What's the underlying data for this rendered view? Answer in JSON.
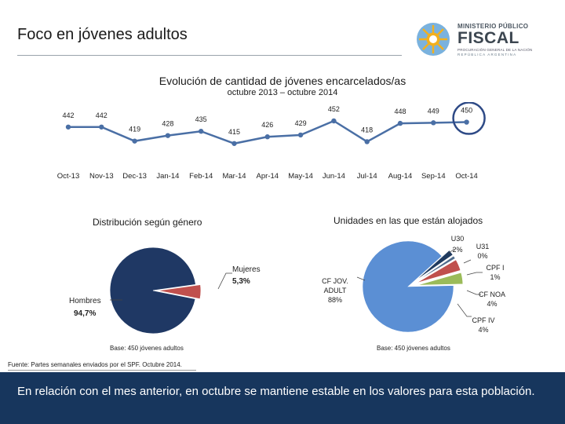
{
  "header": {
    "title": "Foco en jóvenes adultos",
    "logo": {
      "line1": "MINISTERIO PÚBLICO",
      "line2": "FISCAL",
      "line3": "PROCURACIÓN GENERAL DE LA NACIÓN",
      "line4": "REPÚBLICA ARGENTINA",
      "icon": "sun-emblem-icon"
    }
  },
  "colors": {
    "line": "#4a6fa5",
    "pie_dark": "#1f3864",
    "pie_red": "#c0504d",
    "pie_blue": "#5b8fd4",
    "pie_green": "#9bbb59",
    "pie_navy": "#1f3a5f",
    "pie_slate": "#4f6b8c",
    "highlight_circle": "#2e4a86",
    "footer_bg": "#17365d"
  },
  "chart_data": [
    {
      "type": "line",
      "title": "Evolución de cantidad de jóvenes encarcelados/as",
      "subtitle": "octubre 2013 – octubre 2014",
      "categories": [
        "Oct-13",
        "Nov-13",
        "Dec-13",
        "Jan-14",
        "Feb-14",
        "Mar-14",
        "Apr-14",
        "May-14",
        "Jun-14",
        "Jul-14",
        "Aug-14",
        "Sep-14",
        "Oct-14"
      ],
      "values": [
        442,
        442,
        419,
        428,
        435,
        415,
        426,
        429,
        452,
        418,
        448,
        449,
        450
      ],
      "ylim": [
        380,
        470
      ],
      "grid": false,
      "highlight": "Oct-14"
    },
    {
      "type": "pie",
      "title": "Distribución según género",
      "labels": [
        "Hombres",
        "Mujeres"
      ],
      "values": [
        94.7,
        5.3
      ],
      "value_labels": [
        "94,7%",
        "5,3%"
      ],
      "note": "Base: 450 jóvenes adultos"
    },
    {
      "type": "pie",
      "title": "Unidades en las que están alojados",
      "labels": [
        "CF JOV. ADULT",
        "U30",
        "U31",
        "CPF I",
        "CF NOA",
        "CPF IV"
      ],
      "values": [
        88,
        2,
        0,
        1,
        4,
        4
      ],
      "value_labels": [
        "88%",
        "2%",
        "0%",
        "1%",
        "4%",
        "4%"
      ],
      "note": "Base: 450 jóvenes adultos"
    }
  ],
  "source": "Fuente: Partes semanales enviados por el SPF. Octubre 2014.",
  "footer": {
    "text": "En relación con el mes anterior, en octubre se mantiene estable en los valores para esta población."
  }
}
